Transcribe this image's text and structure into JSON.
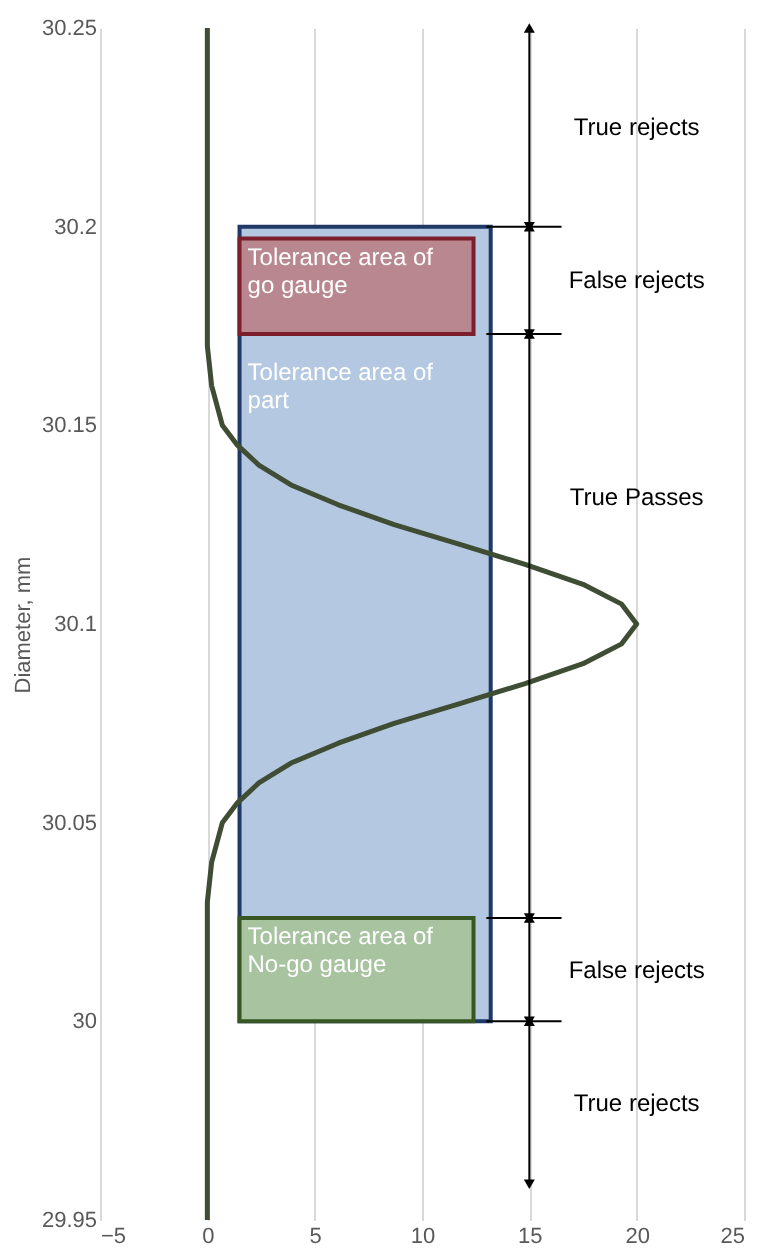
{
  "chart_data": {
    "type": "line",
    "ylabel": "Diameter, mm",
    "xlim": [
      -5,
      25
    ],
    "xticks": [
      -5,
      0,
      5,
      10,
      15,
      20,
      25
    ],
    "ylim": [
      29.95,
      30.25
    ],
    "yticks": [
      29.95,
      30,
      30.05,
      30.1,
      30.15,
      30.2,
      30.25
    ],
    "grid": "x",
    "legend": false,
    "marker": "none",
    "line_style": "solid",
    "series": [
      {
        "color": "#404d35",
        "x": [
          0,
          0,
          0.2,
          0.7,
          1.4,
          2.4,
          3.9,
          6.1,
          8.7,
          11.8,
          14.8,
          17.5,
          19.3,
          20,
          19.3,
          17.5,
          14.8,
          11.8,
          8.7,
          6.1,
          3.9,
          2.4,
          1.4,
          0.7,
          0.2,
          0,
          0
        ],
        "values": [
          29.95,
          30.03,
          30.04,
          30.05,
          30.055,
          30.06,
          30.065,
          30.07,
          30.075,
          30.08,
          30.085,
          30.09,
          30.095,
          30.1,
          30.105,
          30.11,
          30.115,
          30.12,
          30.125,
          30.13,
          30.135,
          30.14,
          30.145,
          30.15,
          30.16,
          30.17,
          30.25
        ]
      }
    ],
    "bands": [
      {
        "axis": "y",
        "from": 30,
        "to": 30.2,
        "label": "Tolerance area of\npart",
        "color": "#b4c8e1"
      },
      {
        "axis": "y",
        "from": 30.173,
        "to": 30.197,
        "label": "Tolerance area of\ngo gauge",
        "color": "#b9878f"
      },
      {
        "axis": "y",
        "from": 30,
        "to": 30.026,
        "label": "Tolerance area of\nNo-go gauge",
        "color": "#a8c3a0"
      }
    ],
    "annotations": [
      "True rejects",
      "False rejects",
      "True Passes",
      "False rejects",
      "True rejects"
    ]
  }
}
